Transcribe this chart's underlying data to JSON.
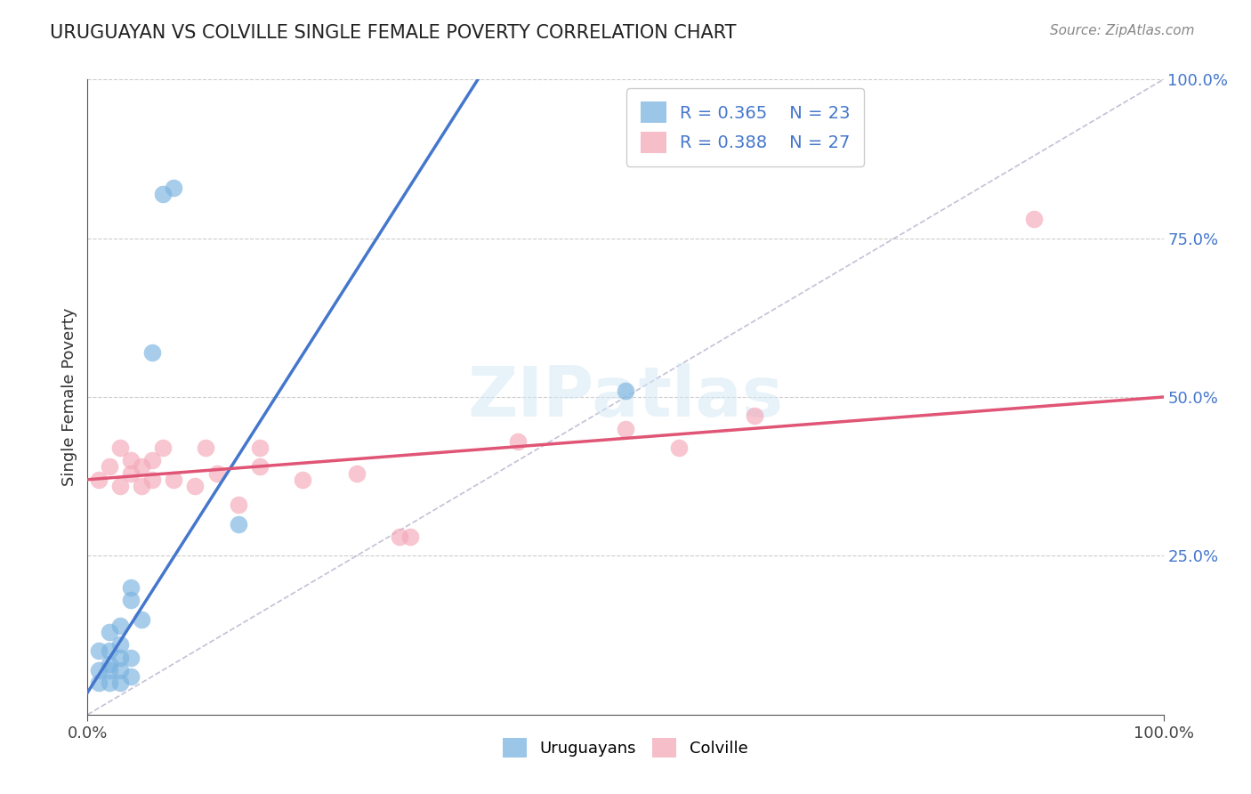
{
  "title": "URUGUAYAN VS COLVILLE SINGLE FEMALE POVERTY CORRELATION CHART",
  "source": "Source: ZipAtlas.com",
  "ylabel": "Single Female Poverty",
  "xlim": [
    0.0,
    1.0
  ],
  "ylim": [
    0.0,
    1.0
  ],
  "ytick_positions": [
    0.25,
    0.5,
    0.75,
    1.0
  ],
  "ytick_labels": [
    "25.0%",
    "50.0%",
    "75.0%",
    "100.0%"
  ],
  "background_color": "#ffffff",
  "uruguayan_color": "#7ab3e0",
  "colville_color": "#f4a8b8",
  "uruguayan_line_color": "#4477cc",
  "colville_line_color": "#e05575",
  "diagonal_color": "#9999bb",
  "R_uruguayan": "0.365",
  "N_uruguayan": "23",
  "R_colville": "0.388",
  "N_colville": "27",
  "uruguayan_x": [
    0.01,
    0.01,
    0.01,
    0.02,
    0.02,
    0.02,
    0.02,
    0.02,
    0.03,
    0.03,
    0.03,
    0.03,
    0.03,
    0.04,
    0.04,
    0.04,
    0.04,
    0.05,
    0.06,
    0.07,
    0.08,
    0.14,
    0.5
  ],
  "uruguayan_y": [
    0.05,
    0.07,
    0.1,
    0.05,
    0.07,
    0.08,
    0.1,
    0.13,
    0.05,
    0.07,
    0.09,
    0.11,
    0.14,
    0.06,
    0.09,
    0.18,
    0.2,
    0.15,
    0.57,
    0.82,
    0.83,
    0.3,
    0.51
  ],
  "colville_x": [
    0.01,
    0.02,
    0.03,
    0.03,
    0.04,
    0.04,
    0.05,
    0.05,
    0.06,
    0.06,
    0.07,
    0.08,
    0.1,
    0.11,
    0.12,
    0.14,
    0.16,
    0.16,
    0.2,
    0.25,
    0.29,
    0.3,
    0.4,
    0.5,
    0.55,
    0.62,
    0.88
  ],
  "colville_y": [
    0.37,
    0.39,
    0.36,
    0.42,
    0.38,
    0.4,
    0.36,
    0.39,
    0.37,
    0.4,
    0.42,
    0.37,
    0.36,
    0.42,
    0.38,
    0.33,
    0.39,
    0.42,
    0.37,
    0.38,
    0.28,
    0.28,
    0.43,
    0.45,
    0.42,
    0.47,
    0.78
  ],
  "blue_line_x0": 0.0,
  "blue_line_y0": 0.035,
  "blue_line_x1": 0.25,
  "blue_line_y1": 0.7,
  "pink_line_x0": 0.0,
  "pink_line_y0": 0.37,
  "pink_line_x1": 1.0,
  "pink_line_y1": 0.5
}
